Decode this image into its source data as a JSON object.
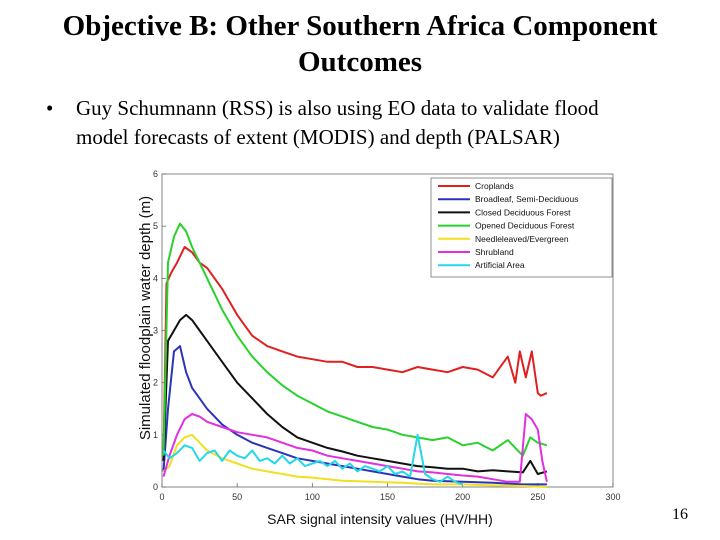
{
  "slide": {
    "title_line1": "Objective B: Other Southern Africa Component",
    "title_line2": "Outcomes",
    "bullet_symbol": "•",
    "bullet_line1": "Guy Schumnann (RSS) is also using EO data to validate flood",
    "bullet_line2": "model forecasts of extent (MODIS) and depth (PALSAR)",
    "page_number": "16"
  },
  "chart_data": {
    "type": "line",
    "xlabel": "SAR signal intensity values  (HV/HH)",
    "ylabel": "Simulated floodplain water depth (m)",
    "xlim": [
      0,
      300
    ],
    "ylim": [
      0,
      6
    ],
    "xticks": [
      "0",
      "50",
      "100",
      "150",
      "200",
      "250",
      "300"
    ],
    "yticks": [
      "0",
      "1",
      "2",
      "3",
      "4",
      "5",
      "6"
    ],
    "legend_position": "top-right",
    "series": [
      {
        "name": "Croplands",
        "color": "#e02020",
        "x": [
          1,
          3,
          6,
          10,
          15,
          20,
          25,
          30,
          40,
          50,
          60,
          70,
          80,
          90,
          100,
          110,
          120,
          130,
          140,
          150,
          160,
          170,
          180,
          190,
          200,
          210,
          220,
          230,
          235,
          238,
          242,
          246,
          250,
          252,
          256
        ],
        "y": [
          0.6,
          3.9,
          4.1,
          4.3,
          4.6,
          4.5,
          4.3,
          4.2,
          3.8,
          3.3,
          2.9,
          2.7,
          2.6,
          2.5,
          2.45,
          2.4,
          2.4,
          2.3,
          2.3,
          2.25,
          2.2,
          2.3,
          2.25,
          2.2,
          2.3,
          2.25,
          2.1,
          2.5,
          2.0,
          2.6,
          2.1,
          2.6,
          1.8,
          1.75,
          1.8
        ]
      },
      {
        "name": "Broadleaf, Semi-Deciduous",
        "color": "#2b34b8",
        "x": [
          1,
          4,
          8,
          12,
          16,
          20,
          30,
          40,
          50,
          60,
          70,
          80,
          90,
          100,
          110,
          120,
          130,
          140,
          150,
          160,
          170,
          180,
          200,
          220,
          240,
          256
        ],
        "y": [
          0.3,
          1.5,
          2.6,
          2.7,
          2.2,
          1.9,
          1.5,
          1.2,
          1.0,
          0.85,
          0.75,
          0.65,
          0.55,
          0.5,
          0.45,
          0.4,
          0.35,
          0.3,
          0.25,
          0.2,
          0.15,
          0.12,
          0.1,
          0.08,
          0.05,
          0.05
        ]
      },
      {
        "name": "Closed Deciduous Forest",
        "color": "#111111",
        "x": [
          1,
          4,
          8,
          12,
          16,
          20,
          25,
          30,
          40,
          50,
          60,
          70,
          80,
          90,
          100,
          110,
          120,
          130,
          140,
          150,
          160,
          170,
          180,
          190,
          200,
          210,
          220,
          230,
          240,
          245,
          250,
          256
        ],
        "y": [
          0.5,
          2.8,
          3.0,
          3.2,
          3.3,
          3.2,
          3.0,
          2.8,
          2.4,
          2.0,
          1.7,
          1.4,
          1.15,
          0.95,
          0.85,
          0.75,
          0.68,
          0.6,
          0.55,
          0.5,
          0.45,
          0.4,
          0.38,
          0.35,
          0.35,
          0.3,
          0.32,
          0.3,
          0.28,
          0.5,
          0.25,
          0.3
        ]
      },
      {
        "name": "Opened Deciduous Forest",
        "color": "#29d22b",
        "x": [
          1,
          4,
          8,
          12,
          16,
          20,
          25,
          30,
          40,
          50,
          60,
          70,
          80,
          90,
          100,
          110,
          120,
          130,
          140,
          150,
          160,
          170,
          180,
          190,
          200,
          210,
          220,
          230,
          240,
          245,
          250,
          256
        ],
        "y": [
          0.6,
          4.3,
          4.8,
          5.05,
          4.9,
          4.6,
          4.3,
          4.0,
          3.4,
          2.9,
          2.5,
          2.2,
          1.95,
          1.75,
          1.6,
          1.45,
          1.35,
          1.25,
          1.15,
          1.1,
          1.0,
          0.95,
          0.9,
          0.95,
          0.8,
          0.85,
          0.7,
          0.9,
          0.6,
          0.95,
          0.85,
          0.8
        ]
      },
      {
        "name": "Needleleaved/Evergreen",
        "color": "#f0e020",
        "x": [
          1,
          5,
          10,
          15,
          20,
          25,
          30,
          40,
          50,
          60,
          70,
          80,
          90,
          100,
          120,
          140,
          160,
          180,
          200,
          220,
          240,
          256
        ],
        "y": [
          0.3,
          0.4,
          0.8,
          0.95,
          1.0,
          0.85,
          0.7,
          0.55,
          0.45,
          0.35,
          0.3,
          0.25,
          0.2,
          0.18,
          0.12,
          0.1,
          0.08,
          0.05,
          0.05,
          0.03,
          0.02,
          0.0
        ]
      },
      {
        "name": "Shrubland",
        "color": "#e030e0",
        "x": [
          1,
          5,
          10,
          15,
          20,
          25,
          30,
          40,
          50,
          60,
          70,
          80,
          90,
          100,
          110,
          120,
          130,
          140,
          150,
          160,
          170,
          180,
          190,
          200,
          210,
          220,
          230,
          238,
          242,
          246,
          250,
          253,
          256
        ],
        "y": [
          0.2,
          0.6,
          1.0,
          1.3,
          1.4,
          1.35,
          1.25,
          1.15,
          1.05,
          1.0,
          0.95,
          0.85,
          0.75,
          0.7,
          0.6,
          0.55,
          0.5,
          0.45,
          0.4,
          0.35,
          0.3,
          0.28,
          0.25,
          0.22,
          0.2,
          0.15,
          0.1,
          0.1,
          1.4,
          1.3,
          1.1,
          0.5,
          0.1
        ]
      },
      {
        "name": "Artificial Area",
        "color": "#25d8e8",
        "x": [
          1,
          5,
          10,
          15,
          20,
          25,
          30,
          35,
          40,
          45,
          50,
          55,
          60,
          65,
          70,
          75,
          80,
          85,
          90,
          95,
          100,
          105,
          110,
          115,
          120,
          125,
          130,
          135,
          140,
          145,
          150,
          155,
          160,
          165,
          170,
          175,
          180,
          185,
          190,
          195,
          200
        ],
        "y": [
          0.7,
          0.55,
          0.65,
          0.8,
          0.75,
          0.5,
          0.65,
          0.7,
          0.5,
          0.7,
          0.6,
          0.55,
          0.7,
          0.5,
          0.55,
          0.45,
          0.6,
          0.45,
          0.55,
          0.4,
          0.45,
          0.5,
          0.4,
          0.5,
          0.35,
          0.45,
          0.3,
          0.4,
          0.35,
          0.3,
          0.4,
          0.25,
          0.3,
          0.2,
          1.0,
          0.25,
          0.15,
          0.1,
          0.2,
          0.1,
          0.05
        ]
      }
    ]
  }
}
